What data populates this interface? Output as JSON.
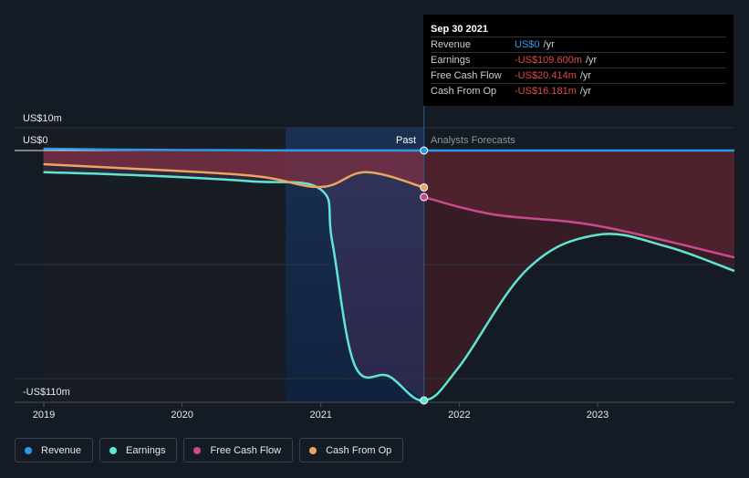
{
  "chart_data": {
    "type": "line",
    "y_axis_labels": {
      "top": "US$10m",
      "zero": "US$0",
      "bottom": "-US$110m"
    },
    "ylim": [
      -110,
      10
    ],
    "x_ticks": [
      "2019",
      "2020",
      "2021",
      "2022",
      "2023"
    ],
    "past_label": "Past",
    "forecast_label": "Analysts Forecasts",
    "divider_date": "Sep 30 2021",
    "grid": true,
    "series": [
      {
        "name": "Revenue",
        "color": "#2d9ae8",
        "points": [
          [
            "2018-12-31",
            0.8
          ],
          [
            "2019-09-30",
            0.3
          ],
          [
            "2020-06-30",
            0.1
          ],
          [
            "2021-09-30",
            0
          ],
          [
            "2023-12-31",
            0
          ]
        ]
      },
      {
        "name": "Earnings",
        "color": "#5ee6d3",
        "points": [
          [
            "2018-12-31",
            -9.5
          ],
          [
            "2019-09-30",
            -11
          ],
          [
            "2020-06-30",
            -13.5
          ],
          [
            "2020-12-31",
            -17
          ],
          [
            "2021-01-31",
            -40
          ],
          [
            "2021-03-31",
            -94
          ],
          [
            "2021-06-30",
            -99
          ],
          [
            "2021-09-30",
            -109.6
          ],
          [
            "2021-12-31",
            -95
          ],
          [
            "2022-06-30",
            -52
          ],
          [
            "2022-12-31",
            -37
          ],
          [
            "2023-06-30",
            -42
          ],
          [
            "2023-12-31",
            -53
          ]
        ]
      },
      {
        "name": "Free Cash Flow",
        "color": "#c94a8c",
        "points": [
          [
            "2021-09-30",
            -20.414
          ],
          [
            "2022-03-31",
            -28
          ],
          [
            "2022-12-31",
            -33
          ],
          [
            "2023-12-31",
            -47
          ]
        ]
      },
      {
        "name": "Cash From Op",
        "color": "#e8a661",
        "points": [
          [
            "2018-12-31",
            -6
          ],
          [
            "2019-06-30",
            -7.5
          ],
          [
            "2020-06-30",
            -11
          ],
          [
            "2020-12-31",
            -16
          ],
          [
            "2021-04-30",
            -9.5
          ],
          [
            "2021-09-30",
            -16.181
          ]
        ]
      }
    ]
  },
  "tooltip": {
    "date": "Sep 30 2021",
    "rows": [
      {
        "name": "Revenue",
        "value": "US$0",
        "unit": "/yr",
        "color": "#2d9ae8"
      },
      {
        "name": "Earnings",
        "value": "-US$109.600m",
        "unit": "/yr",
        "color": "#e64848"
      },
      {
        "name": "Free Cash Flow",
        "value": "-US$20.414m",
        "unit": "/yr",
        "color": "#e64848"
      },
      {
        "name": "Cash From Op",
        "value": "-US$16.181m",
        "unit": "/yr",
        "color": "#e64848"
      }
    ]
  },
  "legend": [
    {
      "label": "Revenue",
      "color": "#2d9ae8"
    },
    {
      "label": "Earnings",
      "color": "#5ee6d3"
    },
    {
      "label": "Free Cash Flow",
      "color": "#c94a8c"
    },
    {
      "label": "Cash From Op",
      "color": "#e8a661"
    }
  ]
}
